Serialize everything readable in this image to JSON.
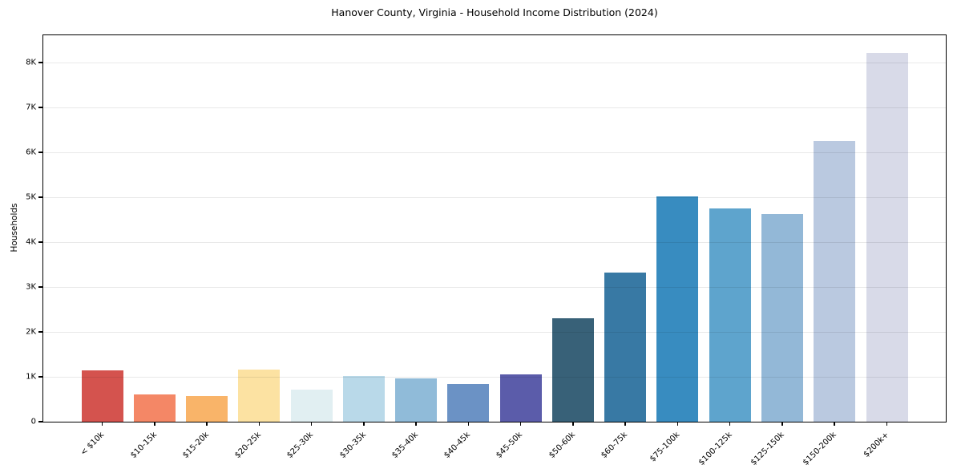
{
  "chart_data": {
    "type": "bar",
    "title": "Hanover County, Virginia - Household Income Distribution (2024)",
    "xlabel": "",
    "ylabel": "Households",
    "categories": [
      "< $10k",
      "$10-15k",
      "$15-20k",
      "$20-25k",
      "$25-30k",
      "$30-35k",
      "$35-40k",
      "$40-45k",
      "$45-50k",
      "$50-60k",
      "$60-75k",
      "$75-100k",
      "$100-125k",
      "$125-150k",
      "$150-200k",
      "$200k+"
    ],
    "values": [
      1150,
      600,
      580,
      1170,
      720,
      1020,
      960,
      840,
      1060,
      2300,
      3320,
      5020,
      4760,
      4630,
      6250,
      8210
    ],
    "bar_colors": [
      "#d4534e",
      "#f48766",
      "#f9b469",
      "#fce2a2",
      "#e1eff2",
      "#b9d9e9",
      "#90bbd9",
      "#6b92c5",
      "#5b5caa",
      "#386178",
      "#3879a4",
      "#388cc0",
      "#5ea4cd",
      "#93b8d7",
      "#bac9e0",
      "#d8dae8"
    ],
    "ylim": [
      0,
      8610
    ],
    "yticks": [
      0,
      1000,
      2000,
      3000,
      4000,
      5000,
      6000,
      7000,
      8000
    ],
    "ytick_labels": [
      "0",
      "1K",
      "2K",
      "3K",
      "4K",
      "5K",
      "6K",
      "7K",
      "8K"
    ],
    "grid": "horizontal",
    "grid_color": "#e9e9e9",
    "spine_color": "#000000",
    "background_color": "#ffffff",
    "legend": "none"
  }
}
